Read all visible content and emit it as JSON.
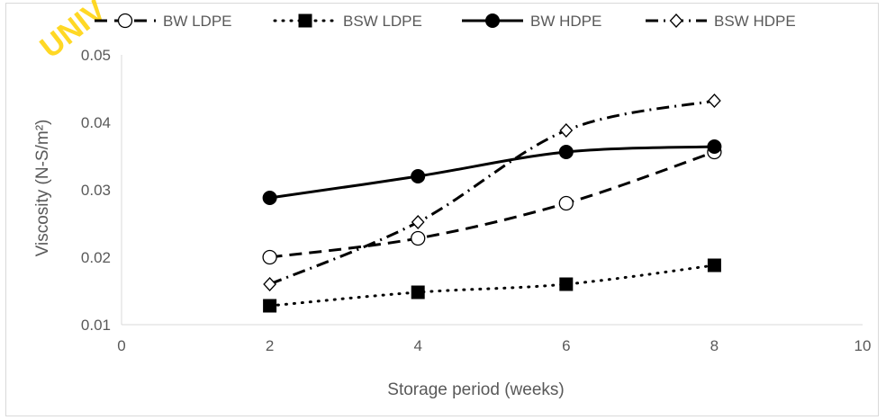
{
  "watermark": "UNIV",
  "chart_data": {
    "type": "line",
    "title": "",
    "xlabel": "Storage period (weeks)",
    "ylabel": "Viscosity (N-S/m²)",
    "xlim": [
      0,
      10
    ],
    "ylim": [
      0.01,
      0.05
    ],
    "xticks": [
      "0",
      "2",
      "4",
      "6",
      "8",
      "10"
    ],
    "yticks": [
      "0.01",
      "0.02",
      "0.03",
      "0.04",
      "0.05"
    ],
    "grid": false,
    "legend_position": "top",
    "series": [
      {
        "name": "BW LDPE",
        "x": [
          2,
          4,
          6,
          8
        ],
        "y": [
          0.02,
          0.0228,
          0.028,
          0.0356
        ],
        "line": "dashed",
        "marker": "open-circle",
        "color": "#000000"
      },
      {
        "name": "BSW LDPE",
        "x": [
          2,
          4,
          6,
          8
        ],
        "y": [
          0.0128,
          0.0148,
          0.016,
          0.0188
        ],
        "line": "dotted",
        "marker": "filled-square",
        "color": "#000000"
      },
      {
        "name": "BW HDPE",
        "x": [
          2,
          4,
          6,
          8
        ],
        "y": [
          0.0288,
          0.032,
          0.0356,
          0.0364
        ],
        "line": "solid",
        "marker": "filled-circle",
        "color": "#000000"
      },
      {
        "name": "BSW HDPE",
        "x": [
          2,
          4,
          6,
          8
        ],
        "y": [
          0.016,
          0.0252,
          0.0388,
          0.0432
        ],
        "line": "dash-dot",
        "marker": "open-diamond",
        "color": "#000000"
      }
    ]
  }
}
